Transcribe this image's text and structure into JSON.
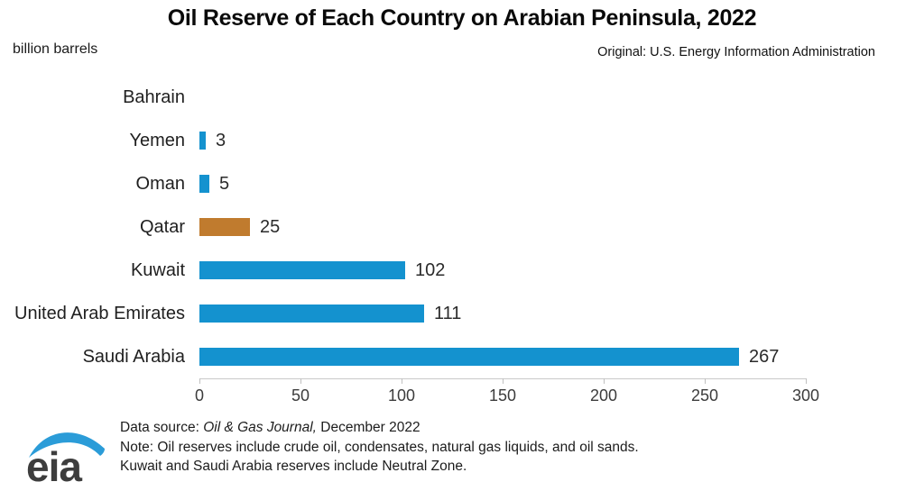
{
  "chart_data": {
    "type": "bar",
    "orientation": "horizontal",
    "title": "Oil Reserve of Each Country on Arabian Peninsula, 2022",
    "unit_label": "billion barrels",
    "attribution": "Original: U.S. Energy Information Administration",
    "xlim": [
      0,
      300
    ],
    "x_ticks": [
      0,
      50,
      100,
      150,
      200,
      250,
      300
    ],
    "grid": false,
    "legend": "none",
    "categories": [
      "Bahrain",
      "Yemen",
      "Oman",
      "Qatar",
      "Kuwait",
      "United Arab Emirates",
      "Saudi Arabia"
    ],
    "values": [
      0,
      3,
      5,
      25,
      102,
      111,
      267
    ],
    "value_labels": [
      "",
      "3",
      "5",
      "25",
      "102",
      "111",
      "267"
    ],
    "bar_colors": [
      "#1492cf",
      "#1492cf",
      "#1492cf",
      "#c07b2e",
      "#1492cf",
      "#1492cf",
      "#1492cf"
    ]
  },
  "colors": {
    "bar_blue": "#1492cf",
    "bar_highlight_orange": "#c07b2e",
    "axis_gray": "#c9c9c9",
    "logo_blue": "#2b9cd8",
    "logo_text_gray": "#3d3d3d"
  },
  "footer": {
    "source_prefix": "Data source: ",
    "source_italic": "Oil & Gas Journal,",
    "source_suffix": " December 2022",
    "note_line1": "Note: Oil reserves include crude oil, condensates, natural gas liquids, and oil sands.",
    "note_line2": "Kuwait and Saudi Arabia reserves include Neutral Zone.",
    "logo_text": "eia"
  }
}
